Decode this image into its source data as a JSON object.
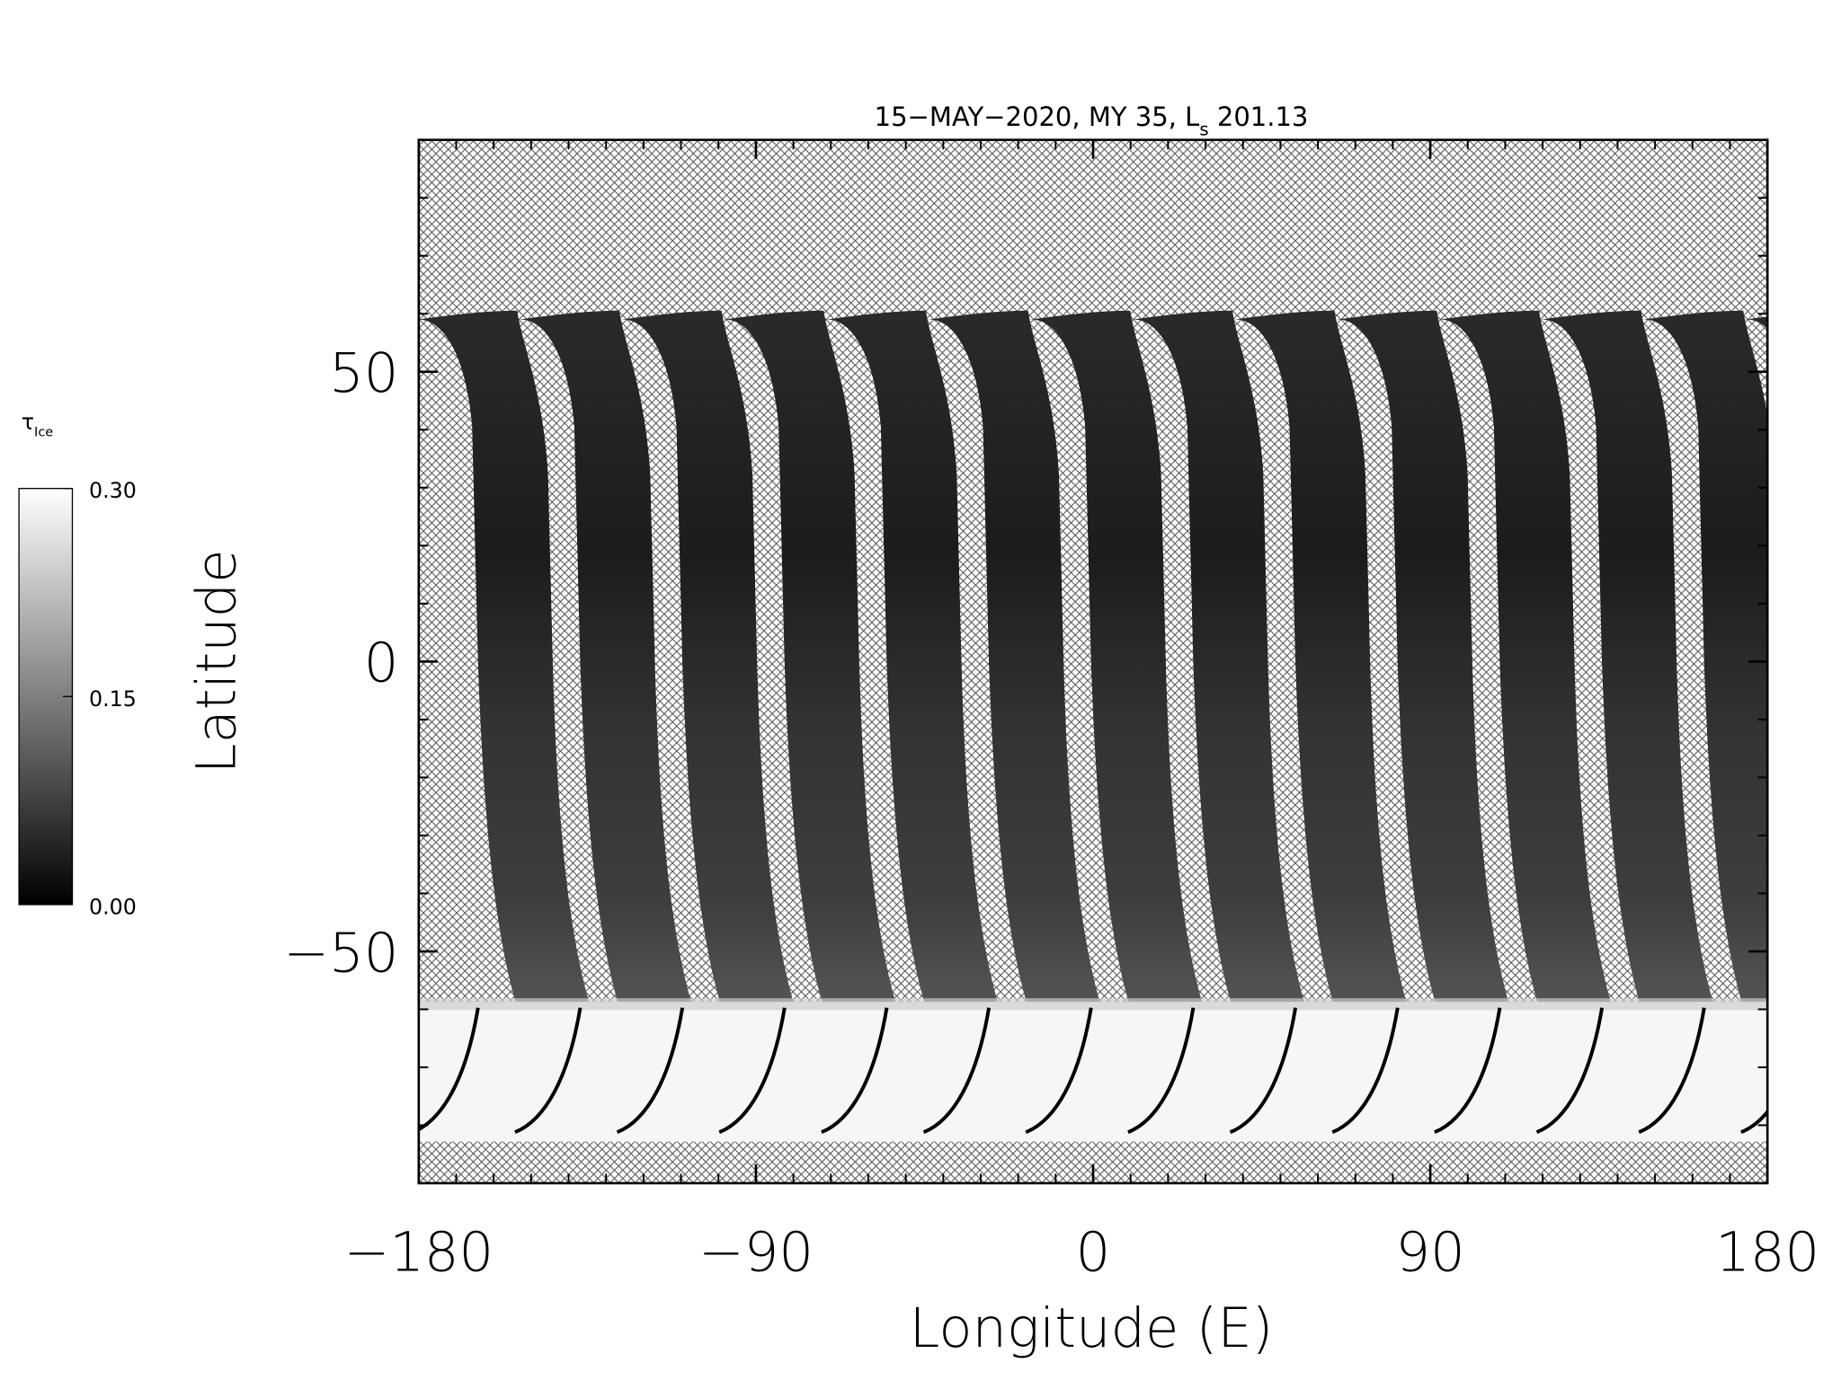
{
  "chart_data": {
    "type": "heatmap",
    "title": "15−MAY−2020, MY 35,  L",
    "title_subscript": "s",
    "title_suffix": " 201.13",
    "x_label": "Longitude (E)",
    "y_label": "Latitude",
    "xlim": [
      -180,
      180
    ],
    "xticks": [
      {
        "value": -180,
        "label": "−180"
      },
      {
        "value": -90,
        "label": "−90"
      },
      0,
      90,
      180
    ],
    "ylim": [
      -90,
      90
    ],
    "yticks": [
      {
        "value": -50,
        "label": "−50"
      },
      0,
      50
    ],
    "minor_tick_step": 10,
    "colorbar": {
      "label": "τ",
      "label_subscript": "Ice",
      "lim": [
        0,
        0.3
      ],
      "ticks": [
        {
          "value": 0,
          "label": "0.00"
        },
        {
          "value": 0.15,
          "label": "0.15"
        },
        {
          "value": 0.3,
          "label": "0.30"
        }
      ]
    }
  }
}
